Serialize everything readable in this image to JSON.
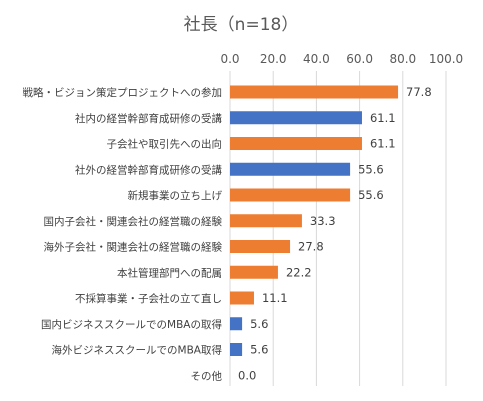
{
  "chart_data": {
    "type": "bar",
    "orientation": "horizontal",
    "title": "社長（n=18）",
    "xlim": [
      0,
      100
    ],
    "x_ticks": [
      "0.0",
      "20.0",
      "40.0",
      "60.0",
      "80.0",
      "100.0"
    ],
    "x_axis_position": "top",
    "grid": true,
    "categories": [
      "戦略・ビジョン策定プロジェクトへの参加",
      "社内の経営幹部育成研修の受講",
      "子会社や取引先への出向",
      "社外の経営幹部育成研修の受講",
      "新規事業の立ち上げ",
      "国内子会社・関連会社の経営職の経験",
      "海外子会社・関連会社の経営職の経験",
      "本社管理部門への配属",
      "不採算事業・子会社の立て直し",
      "国内ビジネススクールでのMBAの取得",
      "海外ビジネススクールでのMBA取得",
      "その他"
    ],
    "values": [
      77.8,
      61.1,
      61.1,
      55.6,
      55.6,
      33.3,
      27.8,
      22.2,
      11.1,
      5.6,
      5.6,
      0.0
    ],
    "value_labels": [
      "77.8",
      "61.1",
      "61.1",
      "55.6",
      "55.6",
      "33.3",
      "27.8",
      "22.2",
      "11.1",
      "5.6",
      "5.6",
      "0.0"
    ],
    "bar_groups": [
      "orange",
      "blue",
      "orange",
      "blue",
      "orange",
      "orange",
      "orange",
      "orange",
      "orange",
      "blue",
      "blue",
      "orange"
    ],
    "colors": {
      "orange": "#ED7D31",
      "blue": "#4472C4",
      "grid": "#D9D9D9",
      "text": "#595959"
    }
  }
}
